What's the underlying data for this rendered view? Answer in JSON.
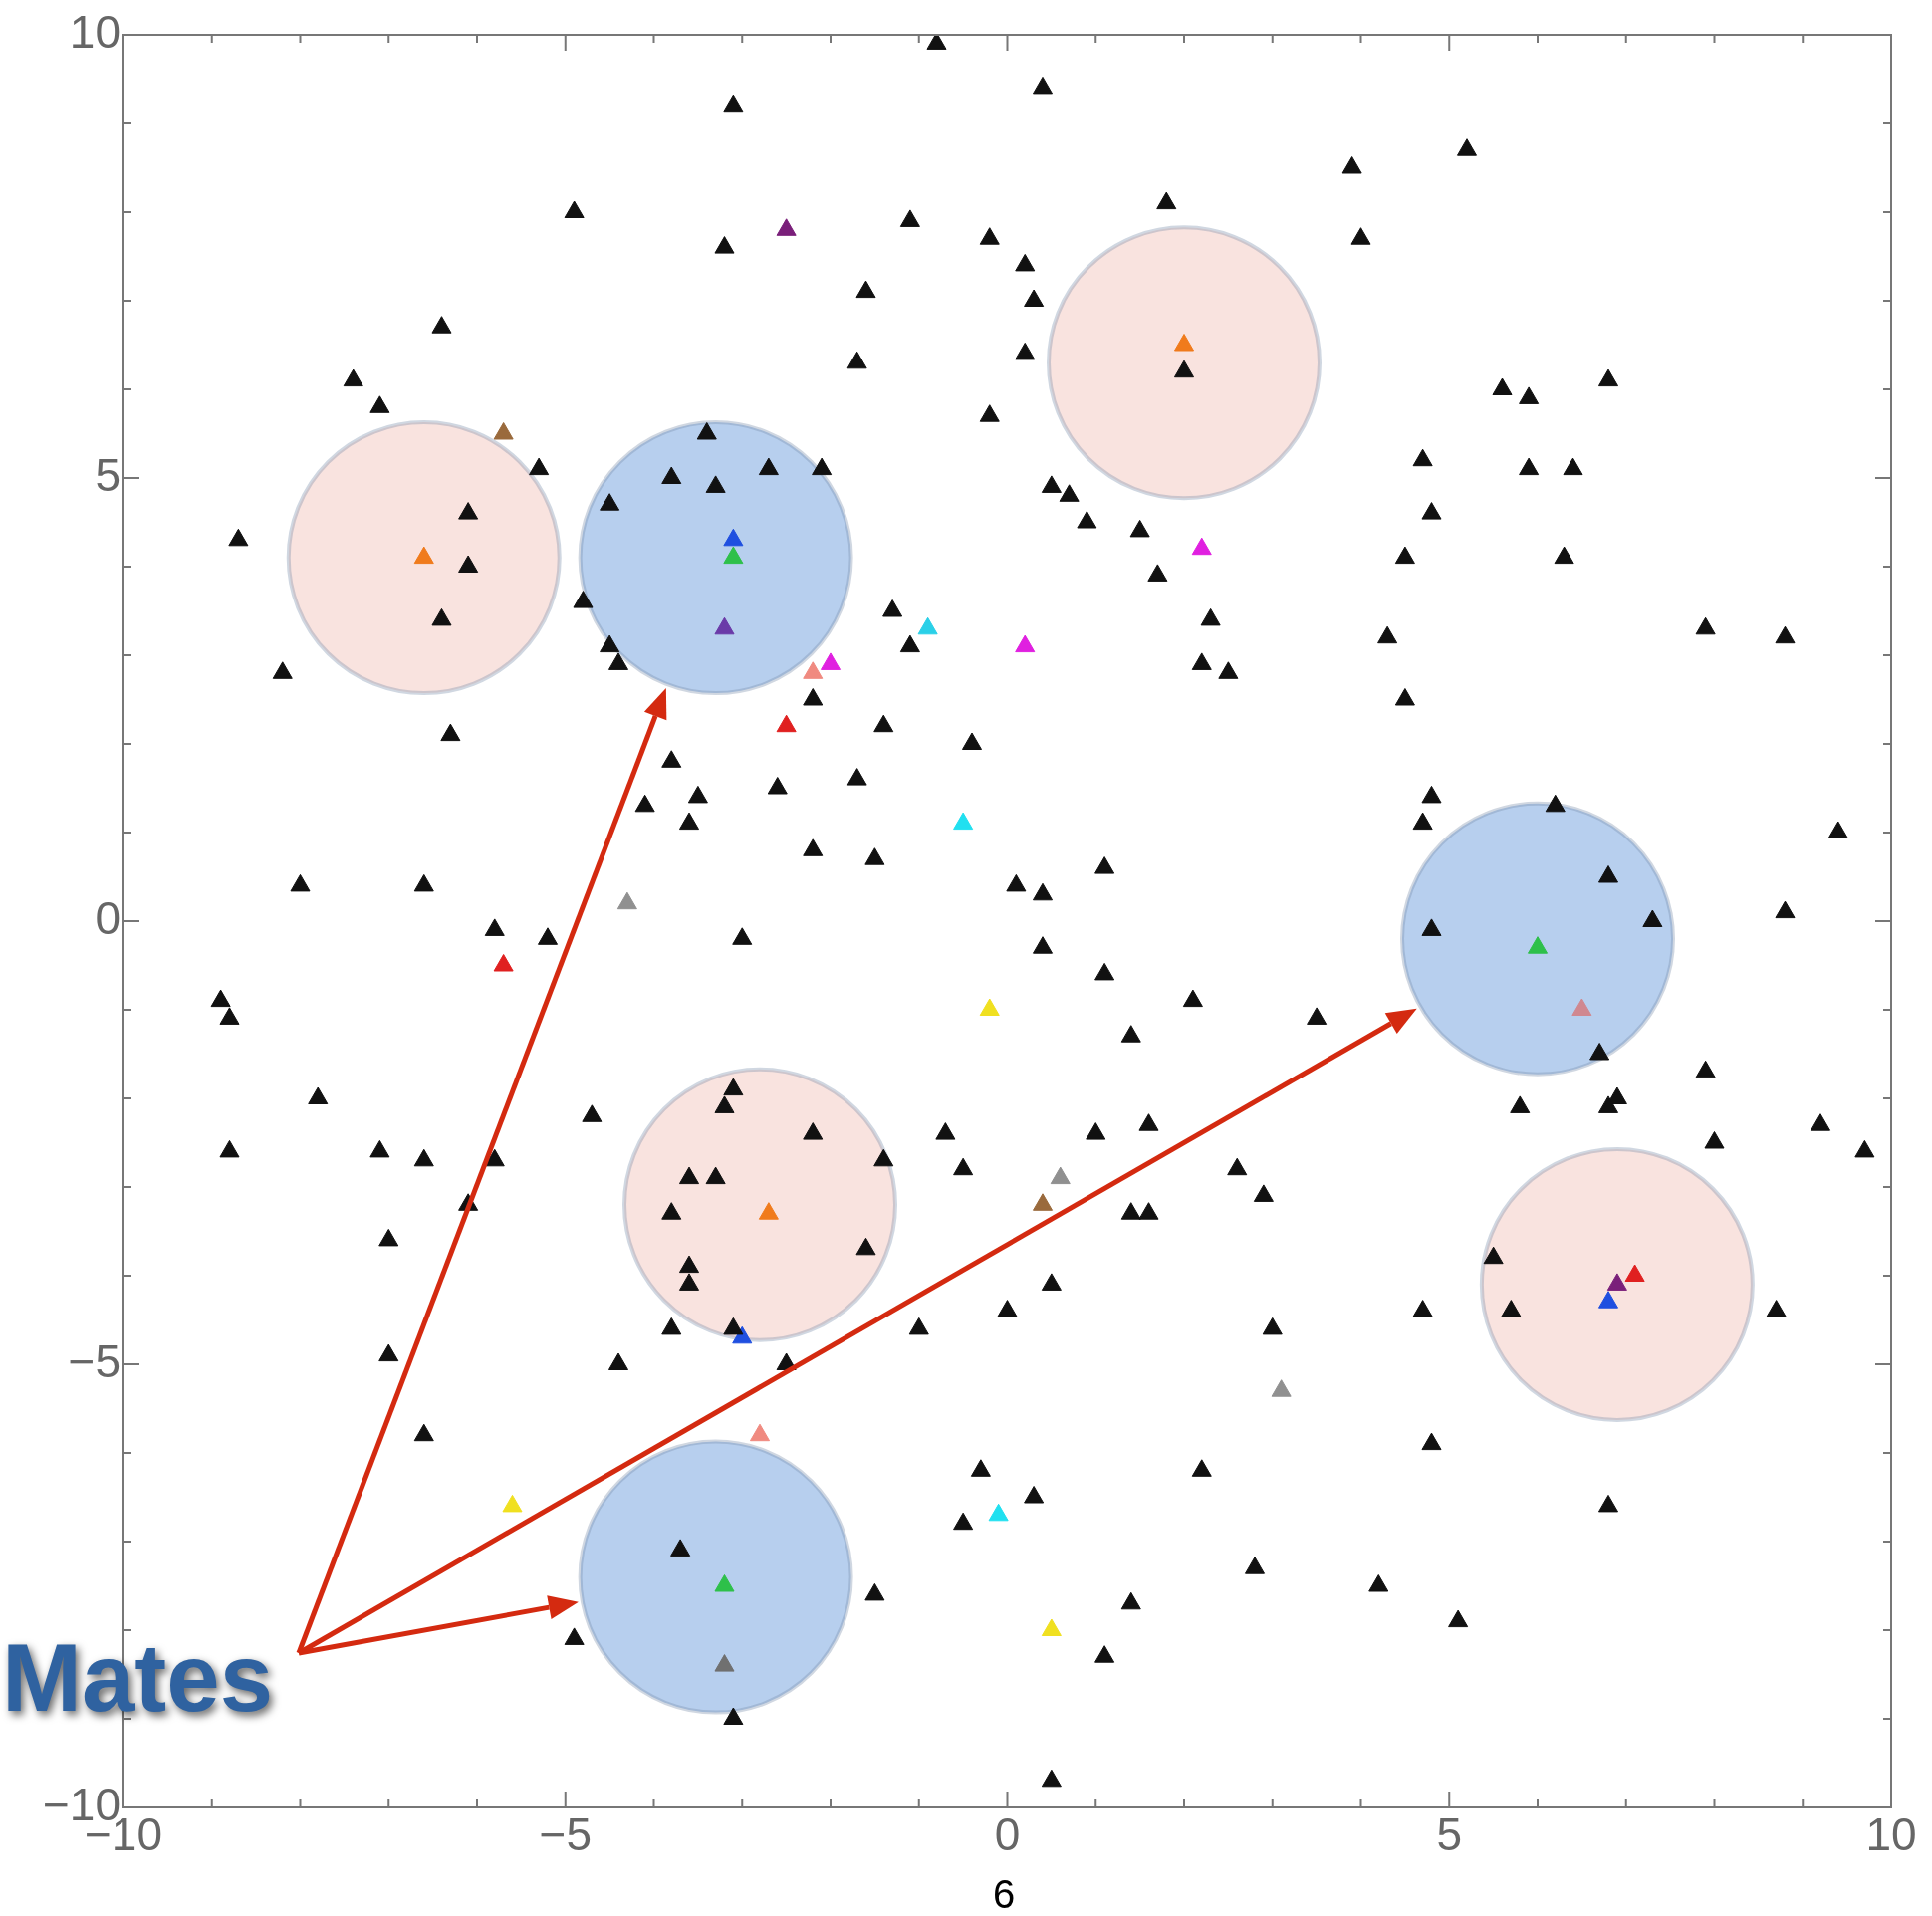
{
  "chart_data": {
    "type": "scatter",
    "annotations": [
      "Mates",
      "6"
    ],
    "xlim": [
      -10,
      10
    ],
    "ylim": [
      -10,
      10
    ],
    "xticks": [
      {
        "value": -10,
        "label": "−10"
      },
      {
        "value": -9,
        "label": null
      },
      {
        "value": -8,
        "label": null
      },
      {
        "value": -7,
        "label": null
      },
      {
        "value": -6,
        "label": null
      },
      {
        "value": -5,
        "label": "−5"
      },
      {
        "value": -4,
        "label": null
      },
      {
        "value": -3,
        "label": null
      },
      {
        "value": -2,
        "label": null
      },
      {
        "value": -1,
        "label": null
      },
      0,
      {
        "value": 1,
        "label": null
      },
      {
        "value": 2,
        "label": null
      },
      {
        "value": 3,
        "label": null
      },
      {
        "value": 4,
        "label": null
      },
      5,
      {
        "value": 6,
        "label": null
      },
      {
        "value": 7,
        "label": null
      },
      {
        "value": 8,
        "label": null
      },
      {
        "value": 9,
        "label": null
      },
      10
    ],
    "yticks": [
      {
        "value": -10,
        "label": "−10"
      },
      {
        "value": -9,
        "label": null
      },
      {
        "value": -8,
        "label": null
      },
      {
        "value": -7,
        "label": null
      },
      {
        "value": -6,
        "label": null
      },
      {
        "value": -5,
        "label": "−5"
      },
      {
        "value": -4,
        "label": null
      },
      {
        "value": -3,
        "label": null
      },
      {
        "value": -2,
        "label": null
      },
      {
        "value": -1,
        "label": null
      },
      0,
      {
        "value": 1,
        "label": null
      },
      {
        "value": 2,
        "label": null
      },
      {
        "value": 3,
        "label": null
      },
      {
        "value": 4,
        "label": null
      },
      5,
      {
        "value": 6,
        "label": null
      },
      {
        "value": 7,
        "label": null
      },
      {
        "value": 8,
        "label": null
      },
      {
        "value": 9,
        "label": null
      },
      10
    ],
    "series": [
      {
        "type": "bubble",
        "color": "#f9e3df",
        "x": [
          -6.6,
          2.0,
          -2.8,
          6.9
        ],
        "values": [
          4.1,
          6.3,
          -3.2,
          -4.1
        ],
        "sizes": [
          1,
          1,
          1,
          1
        ]
      },
      {
        "type": "bubble",
        "color": "#b7cfee",
        "x": [
          -3.3,
          6.0,
          -3.3
        ],
        "values": [
          4.1,
          -0.2,
          -7.4
        ],
        "sizes": [
          1,
          1,
          1
        ]
      },
      {
        "marker": "triangle",
        "color": "#111111",
        "x": [
          -0.8,
          0.4,
          -3.1,
          -4.9,
          -3.2,
          -1.1,
          -0.2,
          1.8,
          3.9,
          5.2,
          4.0,
          -1.6,
          0.2,
          0.3,
          0.2,
          -6.4,
          -7.4,
          -7.1,
          -1.7,
          -0.2,
          2.0,
          5.6,
          5.9,
          6.8,
          4.7,
          5.9,
          6.4,
          -5.3,
          -3.4,
          -3.8,
          -3.3,
          -2.7,
          -2.1,
          -4.5,
          0.5,
          0.7,
          0.9,
          1.5,
          4.8,
          4.5,
          6.3,
          -8.7,
          -6.1,
          -6.1,
          -6.4,
          -4.8,
          -4.5,
          -4.4,
          1.7,
          2.3,
          -1.3,
          -1.1,
          2.2,
          2.5,
          4.3,
          4.5,
          7.9,
          8.8,
          -8.2,
          -6.3,
          -2.2,
          -1.4,
          -0.4,
          -3.8,
          -3.5,
          -4.1,
          -3.6,
          -2.6,
          -1.7,
          -2.2,
          -1.5,
          4.8,
          4.7,
          6.2,
          9.4,
          -8.0,
          -6.6,
          0.1,
          0.4,
          1.1,
          -5.8,
          -5.2,
          -3.0,
          4.8,
          6.8,
          7.3,
          8.8,
          -8.9,
          -8.8,
          0.4,
          1.1,
          2.1,
          1.4,
          3.5,
          6.7,
          -7.8,
          -8.8,
          -7.1,
          -6.6,
          -5.8,
          -6.1,
          -4.7,
          -7.0,
          -3.1,
          -3.2,
          -2.2,
          -1.4,
          -3.6,
          -3.3,
          -3.8,
          -3.6,
          -3.6,
          -1.6,
          -0.7,
          -0.5,
          1.0,
          1.6,
          5.8,
          6.9,
          7.9,
          6.8,
          2.6,
          2.9,
          1.4,
          1.6,
          8.0,
          9.2,
          9.7,
          5.5,
          5.7,
          4.7,
          8.7,
          3.0,
          0.5,
          0.0,
          -1.0,
          -3.1,
          -3.8,
          -2.5,
          -4.4,
          -7.0,
          -6.6,
          4.8,
          -0.3,
          0.3,
          -0.5,
          2.2,
          6.8,
          -3.7,
          -1.5,
          2.8,
          4.2,
          1.4,
          5.1,
          -4.9,
          1.1,
          -3.1,
          0.5
        ],
        "values": [
          9.9,
          9.4,
          9.2,
          8.0,
          7.6,
          7.9,
          7.7,
          8.1,
          8.5,
          8.7,
          7.7,
          7.1,
          7.4,
          7.0,
          6.4,
          6.7,
          6.1,
          5.8,
          6.3,
          5.7,
          6.2,
          6.0,
          5.9,
          6.1,
          5.2,
          5.1,
          5.1,
          5.1,
          5.5,
          5.0,
          4.9,
          5.1,
          5.1,
          4.7,
          4.9,
          4.8,
          4.5,
          4.4,
          4.6,
          4.1,
          4.1,
          4.3,
          4.6,
          4.0,
          3.4,
          3.6,
          3.1,
          2.9,
          3.9,
          3.4,
          3.5,
          3.1,
          2.9,
          2.8,
          3.2,
          2.5,
          3.3,
          3.2,
          2.8,
          2.1,
          2.5,
          2.2,
          2.0,
          1.8,
          1.4,
          1.3,
          1.1,
          1.5,
          1.6,
          0.8,
          0.7,
          1.4,
          1.1,
          1.3,
          1.0,
          0.4,
          0.4,
          0.4,
          0.3,
          0.6,
          -0.1,
          -0.2,
          -0.2,
          -0.1,
          0.5,
          0.0,
          0.1,
          -0.9,
          -1.1,
          -0.3,
          -0.6,
          -0.9,
          -1.3,
          -1.1,
          -1.5,
          -2.0,
          -2.6,
          -2.6,
          -2.7,
          -2.7,
          -3.2,
          -2.2,
          -3.6,
          -1.9,
          -2.1,
          -2.4,
          -2.7,
          -2.9,
          -2.9,
          -3.3,
          -3.9,
          -4.1,
          -3.7,
          -2.4,
          -2.8,
          -2.4,
          -2.3,
          -2.1,
          -2.0,
          -1.7,
          -2.1,
          -2.8,
          -3.1,
          -3.3,
          -3.3,
          -2.5,
          -2.3,
          -2.6,
          -3.8,
          -4.4,
          -4.4,
          -4.4,
          -4.6,
          -4.1,
          -4.4,
          -4.6,
          -4.6,
          -4.6,
          -5.0,
          -5.0,
          -4.9,
          -5.8,
          -5.9,
          -6.2,
          -6.5,
          -6.8,
          -6.2,
          -6.6,
          -7.1,
          -7.6,
          -7.3,
          -7.5,
          -7.7,
          -7.9,
          -8.1,
          -8.3,
          -9.0,
          -9.7
        ]
      },
      {
        "marker": "triangle",
        "colors": [
          "#f07b1c",
          "#9a6a3c",
          "#7a1f7a",
          "#f07b1c",
          "#1f4fe0",
          "#2ec04a",
          "#6a3aa8",
          "#2ad0e8",
          "#f08a80",
          "#e020e0",
          "#e020e0",
          "#e020e0",
          "#e02020",
          "#20e0f0",
          "#909090",
          "#e02020",
          "#f0e020",
          "#2ec04a",
          "#d08890",
          "#909090",
          "#9a6a3c",
          "#f07b1c",
          "#1f4fe0",
          "#e02020",
          "#7a1f7a",
          "#1f4fe0",
          "#909090",
          "#f08a80",
          "#f0e020",
          "#20e0f0",
          "#2ec04a",
          "#707070",
          "#f0e020"
        ],
        "x": [
          2.0,
          -5.7,
          -2.5,
          -6.6,
          -3.1,
          -3.1,
          -3.2,
          -0.9,
          -2.2,
          -2.0,
          2.2,
          0.2,
          -2.5,
          -0.5,
          -4.3,
          -5.7,
          -0.2,
          6.0,
          6.5,
          0.6,
          0.4,
          -2.7,
          -3.0,
          7.1,
          6.9,
          6.8,
          3.1,
          -2.8,
          -5.6,
          -0.1,
          -3.2,
          -3.2,
          0.5
        ],
        "values": [
          6.5,
          5.5,
          7.8,
          4.1,
          4.3,
          4.1,
          3.3,
          3.3,
          2.8,
          2.9,
          4.2,
          3.1,
          2.2,
          1.1,
          0.2,
          -0.5,
          -1.0,
          -0.3,
          -1.0,
          -2.9,
          -3.2,
          -3.3,
          -4.7,
          -4.0,
          -4.1,
          -4.3,
          -5.3,
          -5.8,
          -6.6,
          -6.7,
          -7.5,
          -8.4,
          -8.0
        ]
      }
    ]
  }
}
